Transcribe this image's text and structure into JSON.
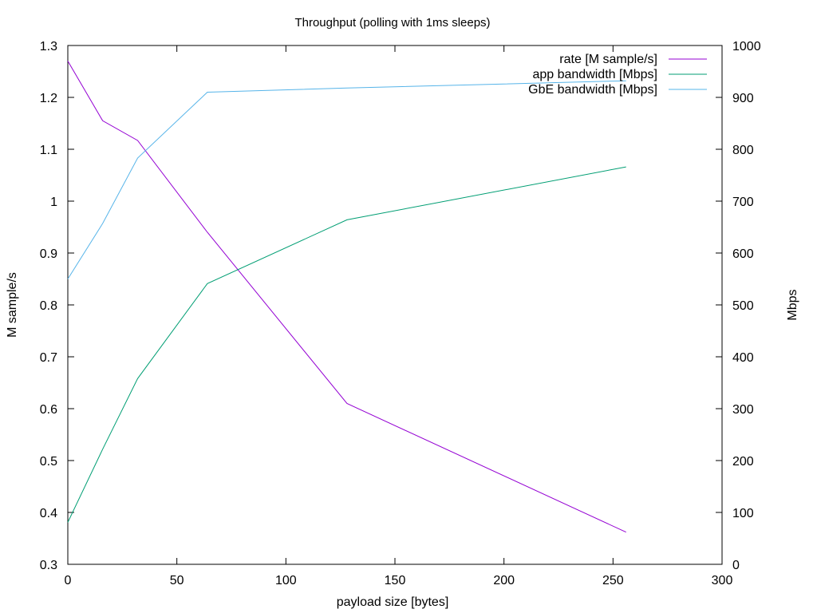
{
  "chart_data": {
    "type": "line",
    "title": "Throughput (polling with 1ms sleeps)",
    "xlabel": "payload size [bytes]",
    "ylabel": "M sample/s",
    "y2label": "Mbps",
    "xlim": [
      0,
      300
    ],
    "ylim": [
      0.3,
      1.3
    ],
    "y2lim": [
      0,
      1000
    ],
    "x_ticks": [
      "0",
      "50",
      "100",
      "150",
      "200",
      "250",
      "300"
    ],
    "y_ticks": [
      "0.3",
      "0.4",
      "0.5",
      "0.6",
      "0.7",
      "0.8",
      "0.9",
      "1",
      "1.1",
      "1.2",
      "1.3"
    ],
    "y2_ticks": [
      "0",
      "100",
      "200",
      "300",
      "400",
      "500",
      "600",
      "700",
      "800",
      "900",
      "1000"
    ],
    "grid": false,
    "legend_position": "top-right",
    "series": [
      {
        "name": "rate [M sample/s]",
        "axis": "left",
        "color": "#9400d3",
        "x": [
          0,
          16,
          32,
          64,
          128,
          256
        ],
        "y": [
          1.27,
          1.155,
          1.117,
          0.94,
          0.61,
          0.362
        ]
      },
      {
        "name": "app bandwidth [Mbps]",
        "axis": "right",
        "color": "#009e73",
        "x": [
          0,
          16,
          32,
          64,
          128,
          256
        ],
        "y": [
          81,
          222,
          358,
          541,
          664,
          766
        ]
      },
      {
        "name": "GbE bandwidth [Mbps]",
        "axis": "right",
        "color": "#56b4e9",
        "x": [
          0,
          16,
          32,
          64,
          128,
          256
        ],
        "y": [
          550,
          657,
          783,
          910,
          918,
          932
        ]
      }
    ]
  }
}
